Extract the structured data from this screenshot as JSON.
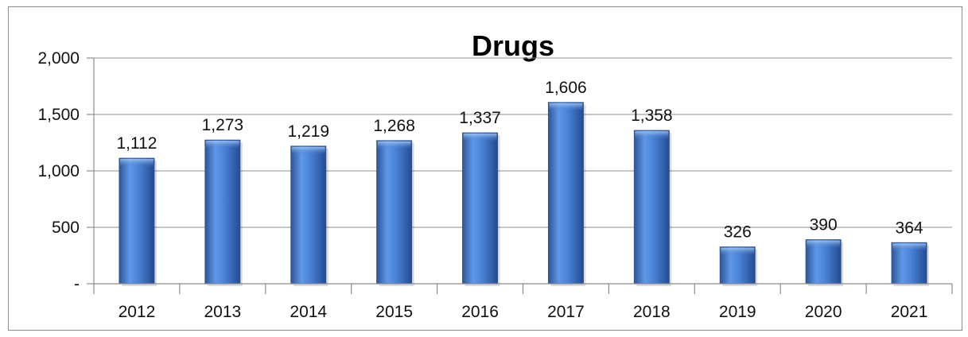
{
  "chart_data": {
    "type": "bar",
    "title": "Drugs",
    "xlabel": "",
    "ylabel": "",
    "categories": [
      "2012",
      "2013",
      "2014",
      "2015",
      "2016",
      "2017",
      "2018",
      "2019",
      "2020",
      "2021"
    ],
    "values": [
      1112,
      1273,
      1219,
      1268,
      1337,
      1606,
      1358,
      326,
      390,
      364
    ],
    "data_labels": [
      "1,112",
      "1,273",
      "1,219",
      "1,268",
      "1,337",
      "1,606",
      "1,358",
      "326",
      "390",
      "364"
    ],
    "ylim": [
      0,
      2000
    ],
    "yticks": [
      0,
      500,
      1000,
      1500,
      2000
    ],
    "ytick_labels": [
      "-",
      "500",
      "1,000",
      "1,500",
      "2,000"
    ],
    "grid": true,
    "legend": "none",
    "colors": {
      "bar_dark": "#2f5597",
      "bar_mid": "#4a82d6",
      "bar_light": "#7fb2ef",
      "grid": "#8c8c8c"
    }
  }
}
